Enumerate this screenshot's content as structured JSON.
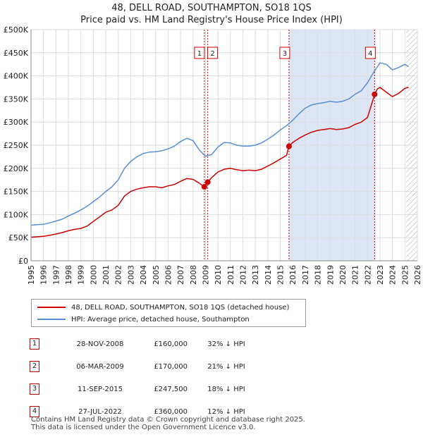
{
  "header": {
    "title_line1": "48, DELL ROAD, SOUTHAMPTON, SO18 1QS",
    "title_line2": "Price paid vs. HM Land Registry's House Price Index (HPI)"
  },
  "colors": {
    "property": "#cc0000",
    "hpi": "#5b8fd0",
    "marker_line": "#cc0000",
    "shade": "#dde6f5",
    "hatch": "#aaaaaa",
    "grid": "#dddddd"
  },
  "legend": {
    "property_label": "48, DELL ROAD, SOUTHAMPTON, SO18 1QS (detached house)",
    "hpi_label": "HPI: Average price, detached house, Southampton"
  },
  "sales": [
    {
      "num": "1",
      "date": "28-NOV-2008",
      "price": "£160,000",
      "hpi": "32% ↓ HPI"
    },
    {
      "num": "2",
      "date": "06-MAR-2009",
      "price": "£170,000",
      "hpi": "21% ↓ HPI"
    },
    {
      "num": "3",
      "date": "11-SEP-2015",
      "price": "£247,500",
      "hpi": "18% ↓ HPI"
    },
    {
      "num": "4",
      "date": "27-JUL-2022",
      "price": "£360,000",
      "hpi": "12% ↓ HPI"
    }
  ],
  "footer": {
    "line1": "Contains HM Land Registry data © Crown copyright and database right 2025.",
    "line2": "This data is licensed under the Open Government Licence v3.0."
  },
  "chart_data": {
    "type": "line",
    "title": "48, DELL ROAD, SOUTHAMPTON, SO18 1QS",
    "subtitle": "Price paid vs. HM Land Registry's House Price Index (HPI)",
    "xlabel": "",
    "ylabel": "",
    "xlim": [
      1995,
      2026
    ],
    "ylim": [
      0,
      500000
    ],
    "x_ticks": [
      1995,
      1996,
      1997,
      1998,
      1999,
      2000,
      2001,
      2002,
      2003,
      2004,
      2005,
      2006,
      2007,
      2008,
      2009,
      2010,
      2011,
      2012,
      2013,
      2014,
      2015,
      2016,
      2017,
      2018,
      2019,
      2020,
      2021,
      2022,
      2023,
      2024,
      2025,
      2026
    ],
    "y_ticks": [
      0,
      50000,
      100000,
      150000,
      200000,
      250000,
      300000,
      350000,
      400000,
      450000,
      500000
    ],
    "y_tick_labels": [
      "£0",
      "£50K",
      "£100K",
      "£150K",
      "£200K",
      "£250K",
      "£300K",
      "£350K",
      "£400K",
      "£450K",
      "£500K"
    ],
    "grid": true,
    "shaded_range": [
      2015.7,
      2022.57
    ],
    "future_from": 2025.1,
    "series": [
      {
        "name": "48, DELL ROAD, SOUTHAMPTON, SO18 1QS (detached house)",
        "x": [
          1995.0,
          1995.5,
          1996.0,
          1996.5,
          1997.0,
          1997.5,
          1998.0,
          1998.5,
          1999.0,
          1999.5,
          2000.0,
          2000.5,
          2001.0,
          2001.5,
          2002.0,
          2002.5,
          2003.0,
          2003.5,
          2004.0,
          2004.5,
          2005.0,
          2005.5,
          2006.0,
          2006.5,
          2007.0,
          2007.5,
          2008.0,
          2008.5,
          2008.91,
          2009.18,
          2009.5,
          2010.0,
          2010.5,
          2011.0,
          2011.5,
          2012.0,
          2012.5,
          2013.0,
          2013.5,
          2014.0,
          2014.5,
          2015.0,
          2015.5,
          2015.7,
          2016.0,
          2016.5,
          2017.0,
          2017.5,
          2018.0,
          2018.5,
          2019.0,
          2019.5,
          2020.0,
          2020.5,
          2021.0,
          2021.5,
          2022.0,
          2022.57,
          2022.8,
          2023.0,
          2023.5,
          2024.0,
          2024.5,
          2025.0,
          2025.3
        ],
        "y": [
          51000,
          52000,
          53000,
          55000,
          58000,
          61000,
          65000,
          68000,
          70000,
          75000,
          85000,
          95000,
          105000,
          110000,
          120000,
          140000,
          150000,
          155000,
          158000,
          160000,
          160000,
          158000,
          162000,
          165000,
          172000,
          178000,
          176000,
          168000,
          160000,
          170000,
          180000,
          192000,
          198000,
          200000,
          197000,
          195000,
          196000,
          195000,
          198000,
          205000,
          212000,
          220000,
          228000,
          247500,
          256000,
          265000,
          272000,
          278000,
          282000,
          284000,
          286000,
          284000,
          285000,
          288000,
          295000,
          300000,
          310000,
          360000,
          372000,
          375000,
          365000,
          355000,
          362000,
          373000,
          375000
        ]
      },
      {
        "name": "HPI: Average price, detached house, Southampton",
        "x": [
          1995.0,
          1995.5,
          1996.0,
          1996.5,
          1997.0,
          1997.5,
          1998.0,
          1998.5,
          1999.0,
          1999.5,
          2000.0,
          2000.5,
          2001.0,
          2001.5,
          2002.0,
          2002.5,
          2003.0,
          2003.5,
          2004.0,
          2004.5,
          2005.0,
          2005.5,
          2006.0,
          2006.5,
          2007.0,
          2007.5,
          2008.0,
          2008.5,
          2009.0,
          2009.5,
          2010.0,
          2010.5,
          2011.0,
          2011.5,
          2012.0,
          2012.5,
          2013.0,
          2013.5,
          2014.0,
          2014.5,
          2015.0,
          2015.5,
          2016.0,
          2016.5,
          2017.0,
          2017.5,
          2018.0,
          2018.5,
          2019.0,
          2019.5,
          2020.0,
          2020.5,
          2021.0,
          2021.5,
          2022.0,
          2022.5,
          2023.0,
          2023.5,
          2024.0,
          2024.5,
          2025.0,
          2025.3
        ],
        "y": [
          77000,
          78000,
          79000,
          82000,
          86000,
          90000,
          97000,
          103000,
          110000,
          118000,
          128000,
          138000,
          150000,
          160000,
          175000,
          200000,
          215000,
          225000,
          232000,
          235000,
          236000,
          238000,
          242000,
          248000,
          258000,
          265000,
          260000,
          240000,
          226000,
          230000,
          246000,
          256000,
          255000,
          250000,
          248000,
          248000,
          250000,
          255000,
          263000,
          272000,
          283000,
          292000,
          304000,
          318000,
          330000,
          337000,
          340000,
          342000,
          345000,
          343000,
          345000,
          350000,
          360000,
          368000,
          385000,
          408000,
          428000,
          425000,
          413000,
          418000,
          425000,
          420000
        ]
      }
    ],
    "markers": [
      {
        "label": "1",
        "x": 2008.91,
        "y": 160000
      },
      {
        "label": "2",
        "x": 2009.18,
        "y": 170000
      },
      {
        "label": "3",
        "x": 2015.7,
        "y": 247500
      },
      {
        "label": "4",
        "x": 2022.57,
        "y": 360000
      }
    ]
  }
}
